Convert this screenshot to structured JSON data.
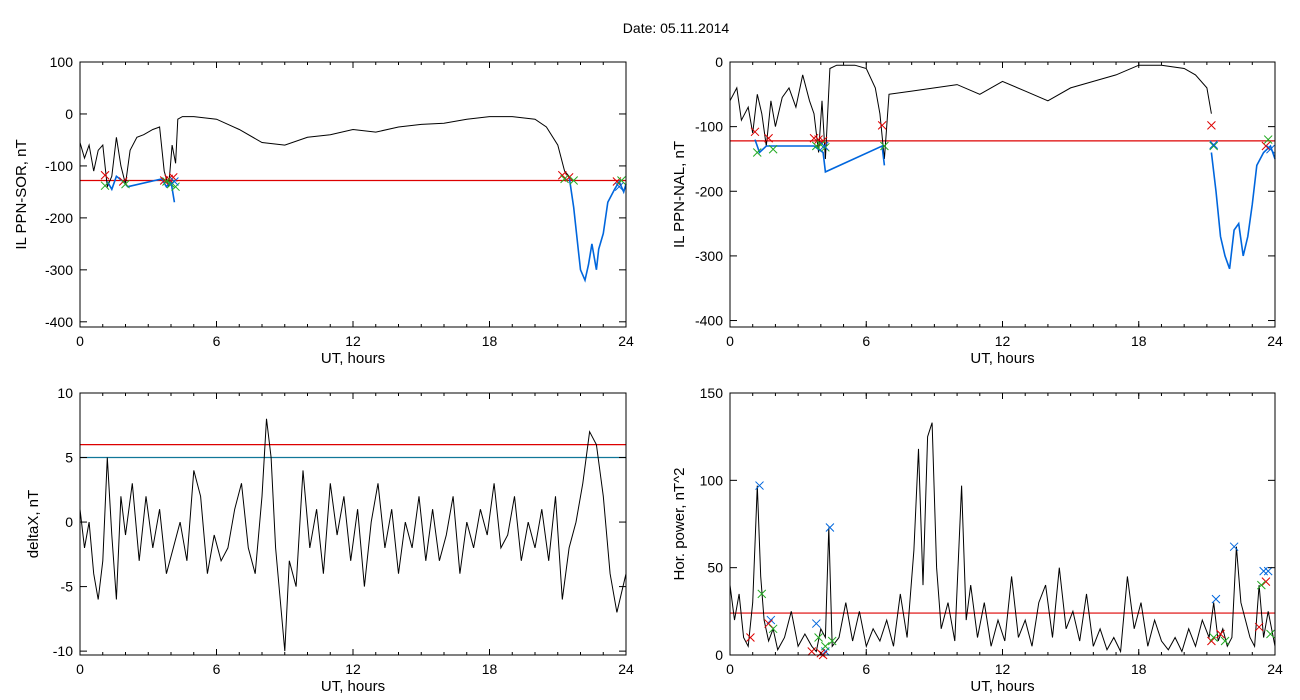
{
  "figure_title": "Date:  05.11.2014",
  "chart_data": [
    {
      "type": "line",
      "panel": "top-left",
      "ylabel": "IL PPN-SOR, nT",
      "xlabel": "UT, hours",
      "xlim": [
        0,
        24
      ],
      "ylim": [
        -410,
        100
      ],
      "xticks": [
        "0",
        "6",
        "12",
        "18",
        "24"
      ],
      "yticks": [
        "100",
        "0",
        "-100",
        "-200",
        "-300",
        "-400"
      ],
      "xtick_values": [
        0,
        6,
        12,
        18,
        24
      ],
      "ytick_values": [
        100,
        0,
        -100,
        -200,
        -300,
        -400
      ],
      "series": [
        {
          "color": "#000000",
          "x": [
            0,
            0.2,
            0.4,
            0.6,
            0.8,
            1.0,
            1.2,
            1.4,
            1.6,
            1.8,
            2.0,
            2.2,
            2.5,
            2.8,
            3.2,
            3.5,
            3.7,
            3.9,
            4.05,
            4.2,
            4.3,
            4.5,
            5,
            6,
            7,
            8,
            9,
            10,
            11,
            12,
            13,
            14,
            15,
            16,
            17,
            18,
            19,
            20,
            20.5,
            21,
            21.3,
            21.5
          ],
          "y": [
            -55,
            -85,
            -60,
            -110,
            -70,
            -60,
            -140,
            -120,
            -45,
            -100,
            -135,
            -70,
            -45,
            -40,
            -30,
            -25,
            -110,
            -140,
            -60,
            -95,
            -10,
            -5,
            -5,
            -10,
            -30,
            -55,
            -60,
            -45,
            -40,
            -30,
            -35,
            -25,
            -20,
            -18,
            -10,
            -5,
            -5,
            -10,
            -25,
            -60,
            -110,
            -120
          ]
        },
        {
          "color": "#0066dd",
          "x": [
            21.5,
            21.7,
            21.9,
            22.0,
            22.2,
            22.35,
            22.5,
            22.7,
            22.8,
            23.0,
            23.2,
            23.5,
            23.7,
            23.9,
            24
          ],
          "y": [
            -120,
            -180,
            -260,
            -300,
            -320,
            -290,
            -250,
            -300,
            -260,
            -230,
            -170,
            -145,
            -130,
            -150,
            -135
          ]
        },
        {
          "color": "#0066dd",
          "x": [
            1.2,
            1.4,
            1.6,
            1.9,
            2.1,
            3.6,
            3.8,
            4.0,
            4.15
          ],
          "y": [
            -130,
            -145,
            -120,
            -130,
            -140,
            -125,
            -140,
            -130,
            -170
          ]
        }
      ],
      "threshold_lines": [
        {
          "color": "#dd0000",
          "y": -128
        }
      ],
      "markers": [
        {
          "color": "#dd0000",
          "x": [
            1.1,
            1.9,
            3.7,
            3.9,
            4.1,
            21.2,
            21.5,
            23.6
          ],
          "y": [
            -118,
            -130,
            -128,
            -125,
            -122,
            -118,
            -122,
            -130
          ]
        },
        {
          "color": "#22aa22",
          "x": [
            1.1,
            2.0,
            3.8,
            4.0,
            4.2,
            21.3,
            21.7,
            23.8
          ],
          "y": [
            -138,
            -135,
            -130,
            -135,
            -140,
            -125,
            -128,
            -128
          ]
        },
        {
          "color": "#0066dd",
          "x": [
            4.15,
            23.7
          ],
          "y": [
            -130,
            -140
          ]
        }
      ]
    },
    {
      "type": "line",
      "panel": "top-right",
      "ylabel": "IL PPN-NAL, nT",
      "xlabel": "UT, hours",
      "xlim": [
        0,
        24
      ],
      "ylim": [
        -410,
        0
      ],
      "xticks": [
        "0",
        "6",
        "12",
        "18",
        "24"
      ],
      "yticks": [
        "0",
        "-100",
        "-200",
        "-300",
        "-400"
      ],
      "xtick_values": [
        0,
        6,
        12,
        18,
        24
      ],
      "ytick_values": [
        0,
        -100,
        -200,
        -300,
        -400
      ],
      "series": [
        {
          "color": "#000000",
          "x": [
            0,
            0.3,
            0.5,
            0.8,
            1.0,
            1.2,
            1.4,
            1.6,
            1.8,
            2.0,
            2.3,
            2.6,
            2.9,
            3.2,
            3.5,
            3.7,
            3.9,
            4.05,
            4.2,
            4.4,
            4.7,
            5,
            5.5,
            6.0,
            6.4,
            6.6,
            6.8,
            7,
            8,
            9,
            10,
            11,
            12,
            13,
            14,
            15,
            16,
            17,
            18,
            19,
            20,
            20.5,
            21,
            21.2
          ],
          "y": [
            -60,
            -40,
            -90,
            -70,
            -110,
            -50,
            -80,
            -130,
            -60,
            -100,
            -55,
            -40,
            -70,
            -20,
            -60,
            -80,
            -140,
            -60,
            -150,
            -10,
            -5,
            -5,
            -5,
            -10,
            -40,
            -80,
            -150,
            -50,
            -45,
            -40,
            -35,
            -50,
            -30,
            -45,
            -60,
            -40,
            -30,
            -20,
            -5,
            -5,
            -10,
            -20,
            -40,
            -80
          ]
        },
        {
          "color": "#0066dd",
          "x": [
            21.2,
            21.4,
            21.6,
            21.8,
            22.0,
            22.2,
            22.4,
            22.6,
            22.8,
            23.0,
            23.2,
            23.5,
            23.8,
            24
          ],
          "y": [
            -140,
            -200,
            -270,
            -300,
            -320,
            -260,
            -250,
            -300,
            -270,
            -220,
            -160,
            -140,
            -130,
            -150
          ]
        },
        {
          "color": "#0066dd",
          "x": [
            1.1,
            1.3,
            1.6,
            3.7,
            3.9,
            4.1,
            4.2,
            6.7,
            6.8
          ],
          "y": [
            -120,
            -140,
            -130,
            -130,
            -135,
            -140,
            -170,
            -130,
            -160
          ]
        }
      ],
      "threshold_lines": [
        {
          "color": "#dd0000",
          "y": -122
        }
      ],
      "markers": [
        {
          "color": "#dd0000",
          "x": [
            1.1,
            1.7,
            3.7,
            3.9,
            4.1,
            6.7,
            21.2,
            23.6
          ],
          "y": [
            -108,
            -118,
            -118,
            -120,
            -122,
            -98,
            -98,
            -130
          ]
        },
        {
          "color": "#22aa22",
          "x": [
            1.2,
            1.9,
            3.8,
            4.0,
            4.2,
            6.8,
            21.3,
            23.7
          ],
          "y": [
            -140,
            -135,
            -130,
            -128,
            -132,
            -130,
            -130,
            -120
          ]
        },
        {
          "color": "#0066dd",
          "x": [
            4.15,
            21.3,
            23.8
          ],
          "y": [
            -130,
            -128,
            -135
          ]
        }
      ]
    },
    {
      "type": "line",
      "panel": "bottom-left",
      "ylabel": "deltaX, nT",
      "xlabel": "UT, hours",
      "xlim": [
        0,
        24
      ],
      "ylim": [
        -10.3,
        10
      ],
      "xticks": [
        "0",
        "6",
        "12",
        "18",
        "24"
      ],
      "yticks": [
        "10",
        "5",
        "0",
        "-5",
        "-10"
      ],
      "xtick_values": [
        0,
        6,
        12,
        18,
        24
      ],
      "ytick_values": [
        10,
        5,
        0,
        -5,
        -10
      ],
      "series": [
        {
          "color": "#000000",
          "x": [
            0,
            0.2,
            0.4,
            0.6,
            0.8,
            1.0,
            1.2,
            1.4,
            1.6,
            1.8,
            2.0,
            2.3,
            2.6,
            2.9,
            3.2,
            3.5,
            3.8,
            4.1,
            4.4,
            4.7,
            5.0,
            5.3,
            5.6,
            5.9,
            6.2,
            6.5,
            6.8,
            7.1,
            7.4,
            7.7,
            8.0,
            8.2,
            8.4,
            8.6,
            8.8,
            9.0,
            9.2,
            9.5,
            9.8,
            10.1,
            10.4,
            10.7,
            11.0,
            11.3,
            11.6,
            11.9,
            12.2,
            12.5,
            12.8,
            13.1,
            13.4,
            13.7,
            14.0,
            14.3,
            14.6,
            14.9,
            15.2,
            15.5,
            15.8,
            16.1,
            16.4,
            16.7,
            17.0,
            17.3,
            17.6,
            17.9,
            18.2,
            18.5,
            18.8,
            19.1,
            19.4,
            19.7,
            20.0,
            20.3,
            20.6,
            20.9,
            21.2,
            21.5,
            21.8,
            22.1,
            22.4,
            22.7,
            23.0,
            23.3,
            23.6,
            24
          ],
          "y": [
            1,
            -2,
            0,
            -4,
            -6,
            -3,
            5,
            -1,
            -6,
            2,
            -1,
            3,
            -3,
            2,
            -2,
            1,
            -4,
            -2,
            0,
            -3,
            4,
            2,
            -4,
            -1,
            -3,
            -2,
            1,
            3,
            -2,
            -4,
            2,
            8,
            5,
            -2,
            -6,
            -10,
            -3,
            -5,
            4,
            -2,
            1,
            -4,
            3,
            -1,
            2,
            -3,
            1,
            -5,
            0,
            3,
            -2,
            1,
            -4,
            0,
            -2,
            2,
            -3,
            1,
            -3,
            -1,
            2,
            -4,
            0,
            -2,
            1,
            -1,
            3,
            -2,
            -1,
            2,
            -3,
            0,
            -2,
            1,
            -3,
            2,
            -6,
            -2,
            0,
            3,
            7,
            6,
            2,
            -4,
            -7,
            -4
          ],
          "values_note_hidden": ""
        }
      ],
      "threshold_lines": [
        {
          "color": "#dd0000",
          "y": 6
        },
        {
          "color": "#117799",
          "y": 5
        }
      ],
      "markers": []
    },
    {
      "type": "line",
      "panel": "bottom-right",
      "ylabel": "Hor. power, nT^2",
      "xlabel": "UT, hours",
      "xlim": [
        0,
        24
      ],
      "ylim": [
        0,
        150
      ],
      "xticks": [
        "0",
        "6",
        "12",
        "18",
        "24"
      ],
      "yticks": [
        "150",
        "100",
        "50",
        "0"
      ],
      "xtick_values": [
        0,
        6,
        12,
        18,
        24
      ],
      "ytick_values": [
        150,
        100,
        50,
        0
      ],
      "series": [
        {
          "color": "#000000",
          "x": [
            0,
            0.2,
            0.4,
            0.6,
            0.8,
            1.0,
            1.2,
            1.35,
            1.5,
            1.7,
            1.9,
            2.1,
            2.4,
            2.7,
            3.0,
            3.3,
            3.6,
            3.8,
            4.0,
            4.2,
            4.35,
            4.5,
            4.8,
            5.1,
            5.4,
            5.7,
            6.0,
            6.3,
            6.6,
            6.9,
            7.2,
            7.5,
            7.8,
            8.1,
            8.3,
            8.5,
            8.7,
            8.9,
            9.1,
            9.3,
            9.6,
            9.9,
            10.2,
            10.4,
            10.6,
            10.9,
            11.2,
            11.5,
            11.8,
            12.1,
            12.4,
            12.7,
            13.0,
            13.3,
            13.6,
            13.9,
            14.2,
            14.5,
            14.8,
            15.1,
            15.4,
            15.7,
            16.0,
            16.3,
            16.6,
            16.9,
            17.2,
            17.5,
            17.8,
            18.1,
            18.4,
            18.7,
            19.0,
            19.3,
            19.6,
            19.9,
            20.2,
            20.5,
            20.8,
            21.1,
            21.3,
            21.5,
            21.7,
            21.9,
            22.1,
            22.3,
            22.5,
            22.7,
            22.9,
            23.1,
            23.3,
            23.5,
            23.7,
            24
          ],
          "y": [
            40,
            20,
            35,
            10,
            5,
            30,
            97,
            45,
            20,
            8,
            15,
            3,
            10,
            25,
            5,
            12,
            5,
            2,
            15,
            10,
            73,
            5,
            10,
            30,
            8,
            25,
            5,
            15,
            8,
            20,
            5,
            35,
            10,
            60,
            118,
            40,
            125,
            133,
            50,
            15,
            30,
            8,
            97,
            20,
            40,
            10,
            30,
            5,
            20,
            8,
            45,
            10,
            20,
            5,
            30,
            40,
            10,
            50,
            15,
            25,
            8,
            35,
            5,
            15,
            3,
            10,
            2,
            45,
            15,
            30,
            5,
            20,
            8,
            3,
            10,
            2,
            15,
            5,
            20,
            10,
            30,
            8,
            15,
            5,
            10,
            62,
            30,
            20,
            10,
            5,
            40,
            10,
            25,
            5
          ]
        }
      ],
      "threshold_lines": [
        {
          "color": "#dd0000",
          "y": 24
        }
      ],
      "markers": [
        {
          "color": "#0066dd",
          "x": [
            1.3,
            1.8,
            3.8,
            4.2,
            4.4,
            21.4,
            22.2,
            23.5,
            23.7
          ],
          "y": [
            97,
            20,
            18,
            2,
            73,
            32,
            62,
            48,
            48
          ]
        },
        {
          "color": "#dd0000",
          "x": [
            0.9,
            1.7,
            3.6,
            4.0,
            4.1,
            21.2,
            21.6,
            23.3,
            23.6
          ],
          "y": [
            10,
            18,
            2,
            1,
            0,
            8,
            12,
            16,
            42
          ]
        },
        {
          "color": "#22aa22",
          "x": [
            1.4,
            1.9,
            3.9,
            4.2,
            4.5,
            21.3,
            21.8,
            23.4,
            23.8
          ],
          "y": [
            35,
            15,
            10,
            5,
            8,
            10,
            8,
            40,
            12
          ]
        }
      ]
    }
  ]
}
